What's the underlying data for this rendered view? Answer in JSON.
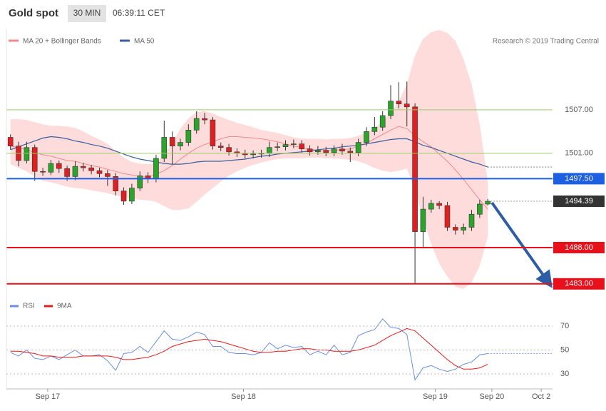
{
  "chart_data": {
    "type": "candlestick",
    "title": "Gold spot",
    "interval": "30 MIN",
    "time": "06:39:11 CET",
    "credit": "Research © 2019 Trading Central",
    "xlim": [
      -0.5,
      67
    ],
    "xticks": [
      {
        "value": 4.6,
        "label": "Sep 17"
      },
      {
        "value": 28.8,
        "label": "Sep 18"
      },
      {
        "value": 52.5,
        "label": "Sep 19"
      },
      {
        "value": 59.5,
        "label": "Sep 20"
      },
      {
        "value": 65.6,
        "label": "Oct 2"
      }
    ],
    "ylim": [
      1481.8,
      1518.2
    ],
    "up_color": "#2aa52a",
    "down_color": "#e02020",
    "open": [
      1503.2,
      1502.0,
      1500.0,
      1501.8,
      1498.5,
      1498.4,
      1499.6,
      1498.9,
      1497.8,
      1499.2,
      1499.0,
      1498.6,
      1498.2,
      1497.8,
      1495.8,
      1494.4,
      1496.2,
      1497.9,
      1497.5,
      1500.3,
      1503.2,
      1502.0,
      1502.5,
      1504.2,
      1505.8,
      1505.6,
      1502.0,
      1501.8,
      1501.2,
      1501.0,
      1500.8,
      1500.9,
      1501.0,
      1501.8,
      1501.9,
      1502.2,
      1502.3,
      1501.6,
      1501.2,
      1501.4,
      1501.1,
      1501.6,
      1501.3,
      1501.1,
      1502.5,
      1504.0,
      1504.6,
      1506.2,
      1508.2,
      1507.8,
      1507.4,
      1490.2,
      1493.3,
      1494.1,
      1493.8,
      1490.8,
      1490.4,
      1490.8,
      1492.6,
      1494.0
    ],
    "high": [
      1503.6,
      1502.6,
      1502.6,
      1502.2,
      1499.0,
      1500.1,
      1500.0,
      1499.3,
      1499.9,
      1499.7,
      1499.4,
      1499.0,
      1498.7,
      1498.3,
      1496.3,
      1496.8,
      1498.5,
      1498.4,
      1500.8,
      1505.5,
      1504.0,
      1503.0,
      1505.0,
      1506.8,
      1506.6,
      1506.0,
      1502.5,
      1502.3,
      1501.7,
      1501.5,
      1501.4,
      1501.5,
      1502.6,
      1502.5,
      1502.8,
      1502.9,
      1502.8,
      1502.1,
      1502.0,
      1501.9,
      1502.1,
      1502.3,
      1501.8,
      1503.0,
      1504.6,
      1506.0,
      1506.8,
      1510.4,
      1510.8,
      1510.9,
      1507.9,
      1495.0,
      1494.6,
      1494.4,
      1494.3,
      1491.2,
      1491.3,
      1493.2,
      1494.6,
      1494.7
    ],
    "low": [
      1501.5,
      1499.2,
      1499.6,
      1497.2,
      1497.9,
      1498.0,
      1498.3,
      1497.2,
      1497.3,
      1498.5,
      1498.1,
      1497.7,
      1496.5,
      1495.2,
      1493.9,
      1494.0,
      1495.8,
      1496.9,
      1497.0,
      1499.8,
      1499.5,
      1501.4,
      1502.0,
      1503.7,
      1505.0,
      1501.5,
      1501.3,
      1500.7,
      1500.5,
      1500.3,
      1500.3,
      1500.4,
      1500.5,
      1501.3,
      1501.4,
      1501.7,
      1501.1,
      1500.7,
      1500.8,
      1500.6,
      1500.6,
      1500.8,
      1499.8,
      1500.6,
      1502.0,
      1503.5,
      1504.1,
      1505.7,
      1507.2,
      1504.7,
      1483.1,
      1488.0,
      1492.8,
      1493.3,
      1490.3,
      1489.8,
      1489.8,
      1490.3,
      1492.1,
      1493.8
    ],
    "close": [
      1502.0,
      1500.0,
      1501.8,
      1498.5,
      1498.4,
      1499.6,
      1498.9,
      1497.8,
      1499.2,
      1499.0,
      1498.6,
      1498.2,
      1497.8,
      1495.8,
      1494.4,
      1496.2,
      1497.9,
      1497.5,
      1500.3,
      1503.2,
      1502.0,
      1502.5,
      1504.2,
      1505.8,
      1505.6,
      1502.0,
      1501.8,
      1501.2,
      1501.0,
      1500.8,
      1500.9,
      1501.0,
      1501.8,
      1501.9,
      1502.2,
      1502.3,
      1501.6,
      1501.2,
      1501.4,
      1501.1,
      1501.6,
      1501.3,
      1501.1,
      1502.5,
      1504.0,
      1504.6,
      1506.2,
      1508.2,
      1507.8,
      1507.4,
      1490.2,
      1493.3,
      1494.1,
      1493.8,
      1490.8,
      1490.4,
      1490.8,
      1492.6,
      1494.0,
      1494.39
    ],
    "overlays": [
      {
        "name": "MA 20 + Bollinger Bands",
        "color": "#f08a8a",
        "band_color": "#ffdcdc",
        "values": [
          1502.0,
          1501.8,
          1501.5,
          1501.1,
          1500.8,
          1500.6,
          1500.3,
          1500.0,
          1499.9,
          1499.6,
          1499.3,
          1499.1,
          1498.8,
          1498.5,
          1498.2,
          1498.0,
          1497.8,
          1497.7,
          1498.1,
          1498.6,
          1499.3,
          1500.2,
          1501.0,
          1501.7,
          1502.2,
          1502.6,
          1503.0,
          1503.3,
          1503.3,
          1503.2,
          1503.1,
          1503.0,
          1502.8,
          1502.6,
          1502.3,
          1502.0,
          1501.8,
          1501.6,
          1501.4,
          1501.4,
          1501.4,
          1501.5,
          1501.6,
          1502.0,
          1502.4,
          1503.0,
          1503.6,
          1504.2,
          1504.7,
          1504.4,
          1503.4,
          1502.6,
          1501.9,
          1500.9,
          1499.9,
          1498.7,
          1497.4,
          1496.0,
          1494.6,
          1493.3
        ],
        "upper": [
          1505.7,
          1505.7,
          1505.6,
          1505.3,
          1505.0,
          1504.8,
          1504.8,
          1504.7,
          1504.5,
          1504.0,
          1503.4,
          1502.9,
          1502.3,
          1501.3,
          1500.4,
          1499.8,
          1499.6,
          1499.5,
          1499.7,
          1500.8,
          1502.5,
          1504.4,
          1505.8,
          1506.7,
          1506.8,
          1506.5,
          1506.0,
          1505.6,
          1505.2,
          1504.9,
          1504.6,
          1504.2,
          1504.0,
          1503.8,
          1503.5,
          1503.2,
          1503.0,
          1503.0,
          1503.0,
          1502.9,
          1503.0,
          1503.0,
          1503.1,
          1503.4,
          1503.8,
          1504.5,
          1505.4,
          1506.6,
          1508.2,
          1510.5,
          1514.5,
          1516.8,
          1517.7,
          1518.0,
          1517.6,
          1516.5,
          1514.0,
          1510.5,
          1505.0,
          1497.0
        ],
        "lower": [
          1499.5,
          1499.0,
          1498.5,
          1497.8,
          1497.2,
          1497.0,
          1496.7,
          1496.4,
          1496.2,
          1496.1,
          1495.9,
          1495.7,
          1495.5,
          1495.2,
          1494.9,
          1494.7,
          1494.6,
          1494.5,
          1494.3,
          1493.7,
          1493.2,
          1493.2,
          1493.4,
          1494.3,
          1495.3,
          1496.2,
          1497.1,
          1497.9,
          1498.5,
          1499.0,
          1499.4,
          1499.7,
          1500.0,
          1500.2,
          1500.3,
          1500.3,
          1500.3,
          1500.4,
          1500.4,
          1500.3,
          1500.3,
          1500.2,
          1500.1,
          1499.9,
          1499.5,
          1499.0,
          1498.6,
          1498.4,
          1498.6,
          1498.9,
          1496.0,
          1492.0,
          1488.5,
          1485.8,
          1484.0,
          1482.6,
          1482.3,
          1483.2,
          1485.5,
          1489.5
        ]
      },
      {
        "name": "MA 50",
        "color": "#3a5f9e",
        "values": [
          1501.5,
          1501.9,
          1502.3,
          1502.7,
          1503.1,
          1503.3,
          1503.2,
          1503.0,
          1502.7,
          1502.5,
          1502.2,
          1502.0,
          1501.7,
          1501.3,
          1500.9,
          1500.5,
          1500.2,
          1500.0,
          1499.8,
          1499.6,
          1499.5,
          1499.5,
          1499.6,
          1499.8,
          1499.9,
          1499.9,
          1499.9,
          1500.0,
          1500.1,
          1500.2,
          1500.4,
          1500.6,
          1500.7,
          1500.9,
          1501.0,
          1501.1,
          1501.2,
          1501.3,
          1501.5,
          1501.6,
          1501.7,
          1501.9,
          1502.0,
          1502.1,
          1502.3,
          1502.5,
          1502.7,
          1502.9,
          1503.0,
          1503.0,
          1502.6,
          1502.1,
          1501.8,
          1501.4,
          1501.0,
          1500.6,
          1500.2,
          1499.8,
          1499.5,
          1499.1
        ]
      }
    ],
    "levels": [
      {
        "value": 1507,
        "label": "1507.00",
        "color": "#9acd6a",
        "boxed": false
      },
      {
        "value": 1501,
        "label": "1501.00",
        "color": "#9acd6a",
        "boxed": false
      },
      {
        "value": 1497.5,
        "label": "1497.50",
        "color": "#1c5fe0",
        "boxed": true
      },
      {
        "value": 1494.39,
        "label": "1494.39",
        "color": "#333333",
        "boxed": true
      },
      {
        "value": 1488,
        "label": "1488.00",
        "color": "#e8101a",
        "boxed": true
      },
      {
        "value": 1483,
        "label": "1483.00",
        "color": "#e8101a",
        "boxed": true
      }
    ],
    "indicator": {
      "ylim": [
        20,
        80
      ],
      "yticks": [
        30,
        50,
        70
      ],
      "series": [
        {
          "name": "RSI",
          "color": "#6a8ee6",
          "values": [
            48,
            45,
            50,
            43,
            42,
            45,
            42,
            46,
            50,
            45,
            45,
            46,
            41,
            33,
            47,
            48,
            53,
            48,
            57,
            66,
            59,
            58,
            61,
            65,
            63,
            53,
            53,
            48,
            47,
            47,
            46,
            48,
            56,
            51,
            54,
            52,
            53,
            46,
            49,
            46,
            54,
            46,
            48,
            62,
            65,
            67,
            76,
            69,
            68,
            63,
            25,
            35,
            37,
            34,
            32,
            34,
            38,
            40,
            46,
            47
          ]
        },
        {
          "name": "9MA",
          "color": "#e51c1c",
          "values": [
            49,
            49,
            48,
            47,
            45,
            45,
            44,
            44,
            44,
            45,
            45,
            45,
            45,
            44,
            42,
            42,
            43,
            44,
            46,
            49,
            53,
            55,
            57,
            58,
            59,
            58,
            57,
            55,
            53,
            51,
            49,
            48,
            48,
            49,
            49,
            50,
            51,
            51,
            50,
            50,
            49,
            49,
            49,
            50,
            52,
            54,
            58,
            62,
            65,
            68,
            66,
            60,
            54,
            48,
            42,
            37,
            34,
            34,
            35,
            38
          ]
        }
      ]
    }
  }
}
